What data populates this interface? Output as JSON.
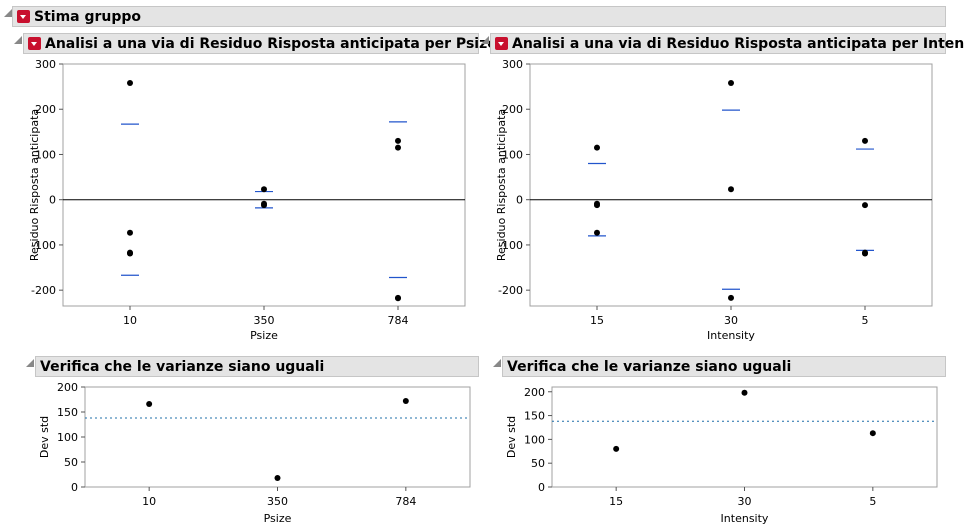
{
  "report": {
    "title": "Stima gruppo"
  },
  "panels": [
    {
      "title": "Analisi a una via di Residuo Risposta anticipata per Psize"
    },
    {
      "title": "Analisi a una via di Residuo Risposta anticipata per Intensity"
    },
    {
      "title": "Verifica che le varianze siano uguali"
    },
    {
      "title": "Verifica che le varianze siano uguali"
    }
  ],
  "chart_data": [
    {
      "type": "scatter",
      "title": "Analisi a una via di Residuo Risposta anticipata per Psize",
      "xlabel": "Psize",
      "ylabel": "Residuo Risposta anticipata",
      "categories": [
        "10",
        "350",
        "784"
      ],
      "ylim": [
        -235,
        300
      ],
      "yticks": [
        300,
        200,
        100,
        0,
        -100,
        -200
      ],
      "points": [
        {
          "x": "10",
          "y": 258
        },
        {
          "x": "10",
          "y": -73
        },
        {
          "x": "10",
          "y": -117
        },
        {
          "x": "10",
          "y": -119
        },
        {
          "x": "350",
          "y": 23
        },
        {
          "x": "350",
          "y": -9
        },
        {
          "x": "350",
          "y": -12
        },
        {
          "x": "784",
          "y": 130
        },
        {
          "x": "784",
          "y": 115
        },
        {
          "x": "784",
          "y": -217
        },
        {
          "x": "784",
          "y": -218
        }
      ],
      "std_dev_lines": [
        {
          "x": "10",
          "upper": 167,
          "lower": -167
        },
        {
          "x": "350",
          "upper": 18,
          "lower": -18
        },
        {
          "x": "784",
          "upper": 172,
          "lower": -172
        }
      ],
      "reference_line": 0,
      "colors": {
        "points": "#000000",
        "std_dev_lines": "#2255cc",
        "reference": "#000000"
      }
    },
    {
      "type": "scatter",
      "title": "Analisi a una via di Residuo Risposta anticipata per Intensity",
      "xlabel": "Intensity",
      "ylabel": "Residuo Risposta anticipata",
      "categories": [
        "15",
        "30",
        "5"
      ],
      "ylim": [
        -235,
        300
      ],
      "yticks": [
        300,
        200,
        100,
        0,
        -100,
        -200
      ],
      "points": [
        {
          "x": "15",
          "y": 115
        },
        {
          "x": "15",
          "y": -9
        },
        {
          "x": "15",
          "y": -12
        },
        {
          "x": "15",
          "y": -73
        },
        {
          "x": "30",
          "y": 258
        },
        {
          "x": "30",
          "y": 23
        },
        {
          "x": "30",
          "y": -217
        },
        {
          "x": "5",
          "y": 130
        },
        {
          "x": "5",
          "y": -12
        },
        {
          "x": "5",
          "y": -117
        },
        {
          "x": "5",
          "y": -119
        }
      ],
      "std_dev_lines": [
        {
          "x": "15",
          "upper": 80,
          "lower": -80
        },
        {
          "x": "30",
          "upper": 198,
          "lower": -198
        },
        {
          "x": "5",
          "upper": 112,
          "lower": -112
        }
      ],
      "reference_line": 0,
      "colors": {
        "points": "#000000",
        "std_dev_lines": "#2255cc",
        "reference": "#000000"
      }
    },
    {
      "type": "scatter",
      "title": "Verifica che le varianze siano uguali",
      "xlabel": "Psize",
      "ylabel": "Dev std",
      "categories": [
        "10",
        "350",
        "784"
      ],
      "ylim": [
        0,
        200
      ],
      "yticks": [
        200,
        150,
        100,
        50,
        0
      ],
      "points": [
        {
          "x": "10",
          "y": 166
        },
        {
          "x": "350",
          "y": 18
        },
        {
          "x": "784",
          "y": 172
        }
      ],
      "reference_line": 138,
      "colors": {
        "points": "#000000",
        "reference": "#1f6fa8"
      }
    },
    {
      "type": "scatter",
      "title": "Verifica che le varianze siano uguali",
      "xlabel": "Intensity",
      "ylabel": "Dev std",
      "categories": [
        "15",
        "30",
        "5"
      ],
      "ylim": [
        0,
        210
      ],
      "yticks": [
        200,
        150,
        100,
        50,
        0
      ],
      "points": [
        {
          "x": "15",
          "y": 80
        },
        {
          "x": "30",
          "y": 198
        },
        {
          "x": "5",
          "y": 113
        }
      ],
      "reference_line": 138,
      "colors": {
        "points": "#000000",
        "reference": "#1f6fa8"
      }
    }
  ]
}
